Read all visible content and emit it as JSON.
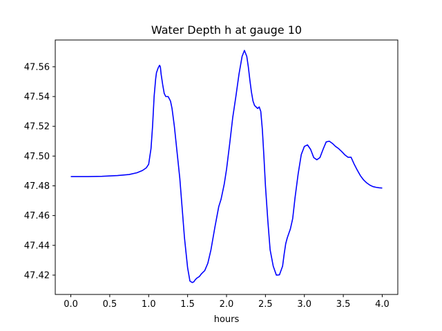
{
  "chart_data": {
    "type": "line",
    "title": "Water Depth h at gauge 10",
    "xlabel": "hours",
    "ylabel": "",
    "xlim": [
      -0.2,
      4.2
    ],
    "ylim": [
      47.407,
      47.578
    ],
    "xticks": [
      0.0,
      0.5,
      1.0,
      1.5,
      2.0,
      2.5,
      3.0,
      3.5,
      4.0
    ],
    "xtick_labels": [
      "0.0",
      "0.5",
      "1.0",
      "1.5",
      "2.0",
      "2.5",
      "3.0",
      "3.5",
      "4.0"
    ],
    "yticks": [
      47.42,
      47.44,
      47.46,
      47.48,
      47.5,
      47.52,
      47.54,
      47.56
    ],
    "ytick_labels": [
      "47.42",
      "47.44",
      "47.46",
      "47.48",
      "47.50",
      "47.52",
      "47.54",
      "47.56"
    ],
    "grid": false,
    "series": [
      {
        "color": "#0000ff",
        "x": [
          0.0,
          0.2,
          0.4,
          0.6,
          0.75,
          0.85,
          0.92,
          0.97,
          1.0,
          1.03,
          1.05,
          1.07,
          1.09,
          1.1,
          1.12,
          1.14,
          1.15,
          1.16,
          1.18,
          1.2,
          1.22,
          1.25,
          1.28,
          1.3,
          1.33,
          1.36,
          1.4,
          1.43,
          1.46,
          1.5,
          1.53,
          1.56,
          1.58,
          1.6,
          1.62,
          1.65,
          1.68,
          1.72,
          1.76,
          1.8,
          1.85,
          1.9,
          1.93,
          1.97,
          2.0,
          2.04,
          2.08,
          2.12,
          2.16,
          2.2,
          2.23,
          2.26,
          2.28,
          2.3,
          2.32,
          2.34,
          2.36,
          2.38,
          2.4,
          2.42,
          2.44,
          2.46,
          2.48,
          2.5,
          2.53,
          2.56,
          2.6,
          2.64,
          2.68,
          2.72,
          2.74,
          2.76,
          2.78,
          2.8,
          2.82,
          2.85,
          2.88,
          2.92,
          2.96,
          3.0,
          3.04,
          3.08,
          3.12,
          3.16,
          3.2,
          3.24,
          3.28,
          3.32,
          3.36,
          3.4,
          3.44,
          3.48,
          3.52,
          3.56,
          3.6,
          3.64,
          3.68,
          3.72,
          3.76,
          3.8,
          3.84,
          3.88,
          3.92,
          3.96,
          4.0
        ],
        "y": [
          47.4862,
          47.4862,
          47.4864,
          47.4869,
          47.4876,
          47.4888,
          47.4903,
          47.4921,
          47.4945,
          47.505,
          47.52,
          47.54,
          47.552,
          47.556,
          47.559,
          47.561,
          47.56,
          47.555,
          47.548,
          47.542,
          47.54,
          47.54,
          47.537,
          47.532,
          47.52,
          47.505,
          47.485,
          47.465,
          47.445,
          47.425,
          47.416,
          47.415,
          47.4155,
          47.417,
          47.418,
          47.419,
          47.421,
          47.423,
          47.428,
          47.437,
          47.452,
          47.466,
          47.471,
          47.481,
          47.491,
          47.508,
          47.526,
          47.54,
          47.555,
          47.567,
          47.571,
          47.567,
          47.56,
          47.551,
          47.543,
          47.537,
          47.534,
          47.533,
          47.532,
          47.533,
          47.53,
          47.518,
          47.5,
          47.48,
          47.457,
          47.437,
          47.426,
          47.42,
          47.4202,
          47.426,
          47.434,
          47.441,
          47.445,
          47.448,
          47.451,
          47.458,
          47.472,
          47.488,
          47.501,
          47.5065,
          47.5075,
          47.5045,
          47.499,
          47.4975,
          47.499,
          47.5045,
          47.5095,
          47.51,
          47.5085,
          47.5065,
          47.505,
          47.503,
          47.5008,
          47.4992,
          47.4992,
          47.4945,
          47.4905,
          47.4868,
          47.484,
          47.482,
          47.4805,
          47.4795,
          47.479,
          47.4787,
          47.4785
        ]
      }
    ]
  }
}
